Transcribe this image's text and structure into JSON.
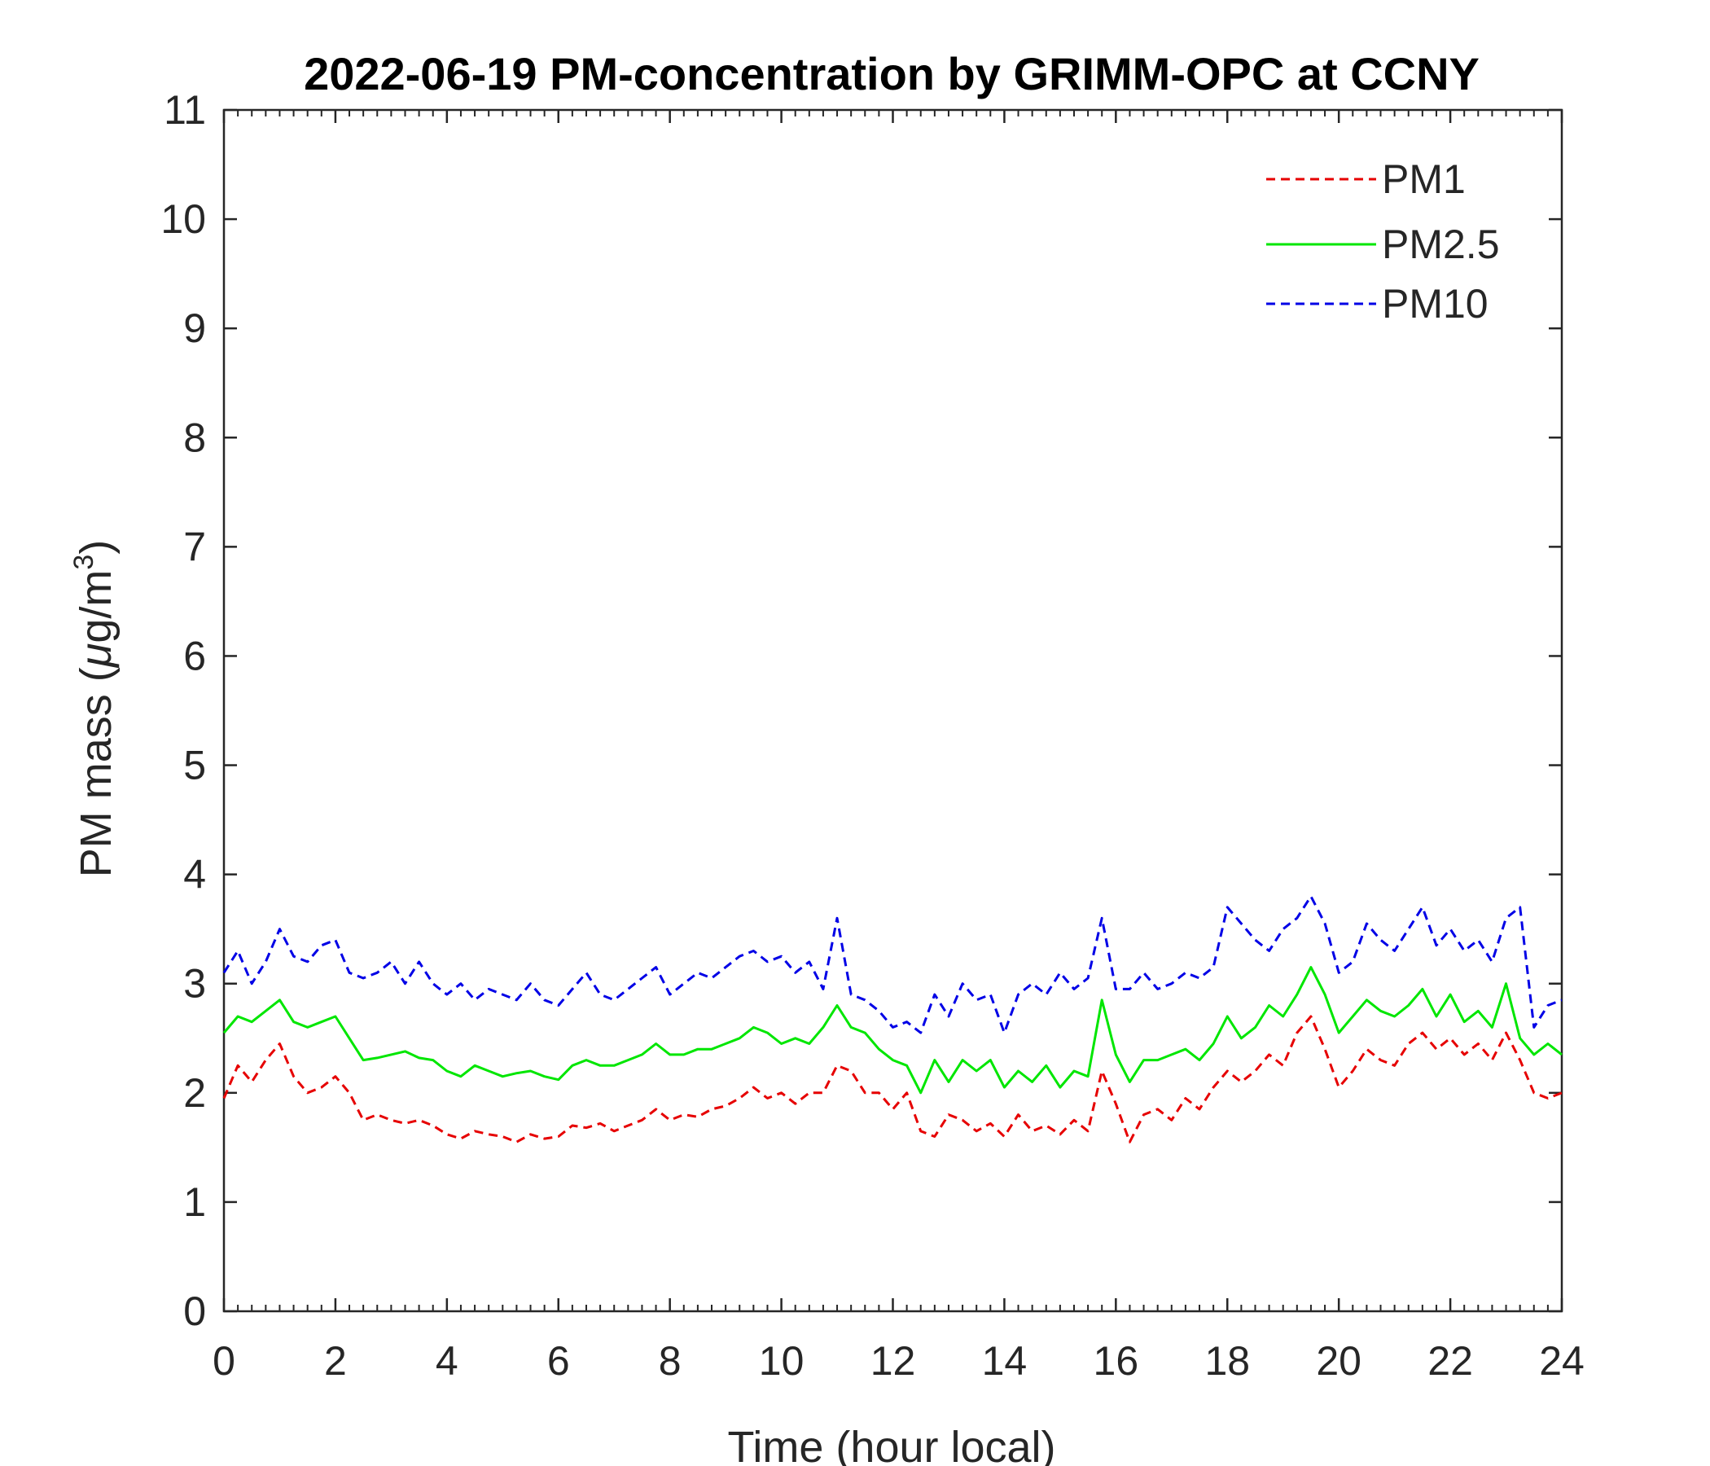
{
  "chart_data": {
    "type": "line",
    "title": "2022-06-19 PM-concentration by GRIMM-OPC at CCNY",
    "xlabel": "Time (hour local)",
    "ylabel": "PM mass (μg/m³)",
    "ylabel_parts": {
      "prefix": "PM mass (",
      "mu": "μ",
      "unit": "g/m",
      "sup": "3",
      "suffix": ")"
    },
    "xlim": [
      0,
      24
    ],
    "ylim": [
      0,
      11
    ],
    "xticks": [
      0,
      2,
      4,
      6,
      8,
      10,
      12,
      14,
      16,
      18,
      20,
      22,
      24
    ],
    "xtick_labels": [
      "0",
      "2",
      "4",
      "6",
      "8",
      "10",
      "12",
      "14",
      "16",
      "18",
      "20",
      "22",
      "24"
    ],
    "yticks": [
      0,
      1,
      2,
      3,
      4,
      5,
      6,
      7,
      8,
      9,
      10,
      11
    ],
    "ytick_labels": [
      "0",
      "1",
      "2",
      "3",
      "4",
      "5",
      "6",
      "7",
      "8",
      "9",
      "10",
      "11"
    ],
    "legend_position": "top-right",
    "series": [
      {
        "name": "PM1",
        "color": "#e60000",
        "style": "dashed",
        "x": [
          0,
          0.25,
          0.5,
          0.75,
          1,
          1.25,
          1.5,
          1.75,
          2,
          2.25,
          2.5,
          2.75,
          3,
          3.25,
          3.5,
          3.75,
          4,
          4.25,
          4.5,
          4.75,
          5,
          5.25,
          5.5,
          5.75,
          6,
          6.25,
          6.5,
          6.75,
          7,
          7.25,
          7.5,
          7.75,
          8,
          8.25,
          8.5,
          8.75,
          9,
          9.25,
          9.5,
          9.75,
          10,
          10.25,
          10.5,
          10.75,
          11,
          11.25,
          11.5,
          11.75,
          12,
          12.25,
          12.5,
          12.75,
          13,
          13.25,
          13.5,
          13.75,
          14,
          14.25,
          14.5,
          14.75,
          15,
          15.25,
          15.5,
          15.75,
          16,
          16.25,
          16.5,
          16.75,
          17,
          17.25,
          17.5,
          17.75,
          18,
          18.25,
          18.5,
          18.75,
          19,
          19.25,
          19.5,
          19.75,
          20,
          20.25,
          20.5,
          20.75,
          21,
          21.25,
          21.5,
          21.75,
          22,
          22.25,
          22.5,
          22.75,
          23,
          23.25,
          23.5,
          23.75,
          24
        ],
        "values": [
          1.95,
          2.25,
          2.1,
          2.3,
          2.45,
          2.15,
          2.0,
          2.05,
          2.15,
          2.0,
          1.75,
          1.8,
          1.75,
          1.72,
          1.75,
          1.7,
          1.62,
          1.58,
          1.65,
          1.62,
          1.6,
          1.55,
          1.62,
          1.58,
          1.6,
          1.7,
          1.68,
          1.72,
          1.65,
          1.7,
          1.75,
          1.85,
          1.75,
          1.8,
          1.78,
          1.85,
          1.88,
          1.95,
          2.05,
          1.95,
          2.0,
          1.9,
          2.0,
          2.0,
          2.25,
          2.2,
          2.0,
          2.0,
          1.85,
          2.0,
          1.65,
          1.6,
          1.8,
          1.75,
          1.65,
          1.72,
          1.6,
          1.8,
          1.65,
          1.7,
          1.62,
          1.75,
          1.65,
          2.2,
          1.9,
          1.55,
          1.8,
          1.85,
          1.75,
          1.95,
          1.85,
          2.05,
          2.2,
          2.1,
          2.2,
          2.35,
          2.25,
          2.55,
          2.7,
          2.4,
          2.05,
          2.2,
          2.4,
          2.3,
          2.25,
          2.45,
          2.55,
          2.4,
          2.5,
          2.35,
          2.45,
          2.3,
          2.55,
          2.3,
          2.0,
          1.95,
          2.0
        ]
      },
      {
        "name": "PM2.5",
        "color": "#00e600",
        "style": "solid",
        "x": [
          0,
          0.25,
          0.5,
          0.75,
          1,
          1.25,
          1.5,
          1.75,
          2,
          2.25,
          2.5,
          2.75,
          3,
          3.25,
          3.5,
          3.75,
          4,
          4.25,
          4.5,
          4.75,
          5,
          5.25,
          5.5,
          5.75,
          6,
          6.25,
          6.5,
          6.75,
          7,
          7.25,
          7.5,
          7.75,
          8,
          8.25,
          8.5,
          8.75,
          9,
          9.25,
          9.5,
          9.75,
          10,
          10.25,
          10.5,
          10.75,
          11,
          11.25,
          11.5,
          11.75,
          12,
          12.25,
          12.5,
          12.75,
          13,
          13.25,
          13.5,
          13.75,
          14,
          14.25,
          14.5,
          14.75,
          15,
          15.25,
          15.5,
          15.75,
          16,
          16.25,
          16.5,
          16.75,
          17,
          17.25,
          17.5,
          17.75,
          18,
          18.25,
          18.5,
          18.75,
          19,
          19.25,
          19.5,
          19.75,
          20,
          20.25,
          20.5,
          20.75,
          21,
          21.25,
          21.5,
          21.75,
          22,
          22.25,
          22.5,
          22.75,
          23,
          23.25,
          23.5,
          23.75,
          24
        ],
        "values": [
          2.55,
          2.7,
          2.65,
          2.75,
          2.85,
          2.65,
          2.6,
          2.65,
          2.7,
          2.5,
          2.3,
          2.32,
          2.35,
          2.38,
          2.32,
          2.3,
          2.2,
          2.15,
          2.25,
          2.2,
          2.15,
          2.18,
          2.2,
          2.15,
          2.12,
          2.25,
          2.3,
          2.25,
          2.25,
          2.3,
          2.35,
          2.45,
          2.35,
          2.35,
          2.4,
          2.4,
          2.45,
          2.5,
          2.6,
          2.55,
          2.45,
          2.5,
          2.45,
          2.6,
          2.8,
          2.6,
          2.55,
          2.4,
          2.3,
          2.25,
          2.0,
          2.3,
          2.1,
          2.3,
          2.2,
          2.3,
          2.05,
          2.2,
          2.1,
          2.25,
          2.05,
          2.2,
          2.15,
          2.85,
          2.35,
          2.1,
          2.3,
          2.3,
          2.35,
          2.4,
          2.3,
          2.45,
          2.7,
          2.5,
          2.6,
          2.8,
          2.7,
          2.9,
          3.15,
          2.9,
          2.55,
          2.7,
          2.85,
          2.75,
          2.7,
          2.8,
          2.95,
          2.7,
          2.9,
          2.65,
          2.75,
          2.6,
          3.0,
          2.5,
          2.35,
          2.45,
          2.35
        ]
      },
      {
        "name": "PM10",
        "color": "#0000e6",
        "style": "dashed",
        "x": [
          0,
          0.25,
          0.5,
          0.75,
          1,
          1.25,
          1.5,
          1.75,
          2,
          2.25,
          2.5,
          2.75,
          3,
          3.25,
          3.5,
          3.75,
          4,
          4.25,
          4.5,
          4.75,
          5,
          5.25,
          5.5,
          5.75,
          6,
          6.25,
          6.5,
          6.75,
          7,
          7.25,
          7.5,
          7.75,
          8,
          8.25,
          8.5,
          8.75,
          9,
          9.25,
          9.5,
          9.75,
          10,
          10.25,
          10.5,
          10.75,
          11,
          11.25,
          11.5,
          11.75,
          12,
          12.25,
          12.5,
          12.75,
          13,
          13.25,
          13.5,
          13.75,
          14,
          14.25,
          14.5,
          14.75,
          15,
          15.25,
          15.5,
          15.75,
          16,
          16.25,
          16.5,
          16.75,
          17,
          17.25,
          17.5,
          17.75,
          18,
          18.25,
          18.5,
          18.75,
          19,
          19.25,
          19.5,
          19.75,
          20,
          20.25,
          20.5,
          20.75,
          21,
          21.25,
          21.5,
          21.75,
          22,
          22.25,
          22.5,
          22.75,
          23,
          23.25,
          23.5,
          23.75,
          24
        ],
        "values": [
          3.1,
          3.3,
          3.0,
          3.2,
          3.5,
          3.25,
          3.2,
          3.35,
          3.4,
          3.1,
          3.05,
          3.1,
          3.2,
          3.0,
          3.2,
          3.0,
          2.9,
          3.0,
          2.85,
          2.95,
          2.9,
          2.85,
          3.0,
          2.85,
          2.8,
          2.95,
          3.1,
          2.9,
          2.85,
          2.95,
          3.05,
          3.15,
          2.9,
          3.0,
          3.1,
          3.05,
          3.15,
          3.25,
          3.3,
          3.2,
          3.25,
          3.1,
          3.2,
          2.95,
          3.6,
          2.9,
          2.85,
          2.75,
          2.6,
          2.65,
          2.55,
          2.9,
          2.7,
          3.0,
          2.85,
          2.9,
          2.55,
          2.9,
          3.0,
          2.9,
          3.1,
          2.95,
          3.05,
          3.6,
          2.95,
          2.95,
          3.1,
          2.95,
          3.0,
          3.1,
          3.05,
          3.15,
          3.7,
          3.55,
          3.4,
          3.3,
          3.5,
          3.6,
          3.8,
          3.55,
          3.1,
          3.2,
          3.55,
          3.4,
          3.3,
          3.5,
          3.7,
          3.35,
          3.5,
          3.3,
          3.4,
          3.2,
          3.6,
          3.7,
          2.6,
          2.8,
          2.85
        ]
      }
    ]
  }
}
